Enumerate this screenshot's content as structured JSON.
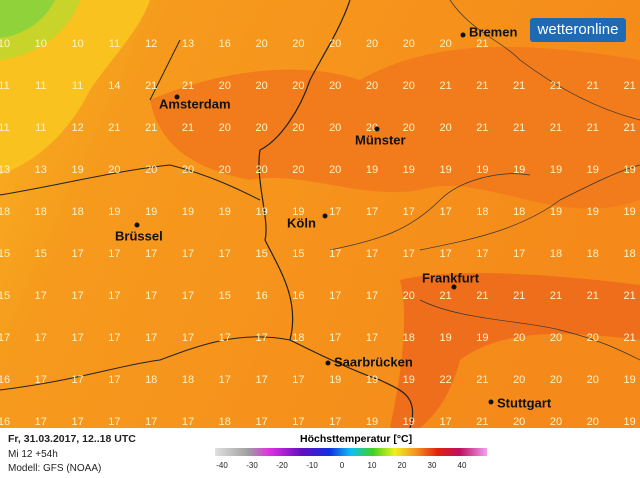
{
  "brand": "wetteronline",
  "grid": {
    "rows": [
      [
        10,
        10,
        10,
        11,
        12,
        13,
        16,
        20,
        20,
        20,
        20,
        20,
        20,
        21,
        null,
        null,
        null,
        null
      ],
      [
        11,
        11,
        11,
        14,
        21,
        21,
        20,
        20,
        20,
        20,
        20,
        20,
        21,
        21,
        21,
        21,
        21,
        21
      ],
      [
        11,
        11,
        12,
        21,
        21,
        21,
        20,
        20,
        20,
        20,
        20,
        20,
        20,
        21,
        21,
        21,
        21,
        21
      ],
      [
        13,
        13,
        19,
        20,
        20,
        20,
        20,
        20,
        20,
        20,
        19,
        19,
        19,
        19,
        19,
        19,
        19,
        19
      ],
      [
        18,
        18,
        18,
        19,
        19,
        19,
        19,
        19,
        19,
        17,
        17,
        17,
        17,
        18,
        18,
        19,
        19,
        19
      ],
      [
        15,
        15,
        17,
        17,
        17,
        17,
        17,
        15,
        15,
        17,
        17,
        17,
        17,
        17,
        17,
        18,
        18,
        18
      ],
      [
        15,
        17,
        17,
        17,
        17,
        17,
        15,
        16,
        16,
        17,
        17,
        20,
        21,
        21,
        21,
        21,
        21,
        21
      ],
      [
        17,
        17,
        17,
        17,
        17,
        17,
        17,
        17,
        18,
        17,
        17,
        18,
        19,
        19,
        20,
        20,
        20,
        21
      ],
      [
        16,
        17,
        17,
        17,
        18,
        18,
        17,
        17,
        17,
        19,
        19,
        19,
        22,
        21,
        20,
        20,
        20,
        19
      ],
      [
        16,
        17,
        17,
        17,
        17,
        17,
        18,
        17,
        17,
        17,
        19,
        19,
        17,
        21,
        20,
        20,
        20,
        19
      ]
    ]
  },
  "cities": [
    {
      "name": "Bremen"
    },
    {
      "name": "Amsterdam"
    },
    {
      "name": "Münster"
    },
    {
      "name": "Brüssel"
    },
    {
      "name": "Köln"
    },
    {
      "name": "Frankfurt"
    },
    {
      "name": "Saarbrücken"
    },
    {
      "name": "Stuttgart"
    }
  ],
  "footer": {
    "date": "Fr, 31.03.2017, 12..18 UTC",
    "run": "Mi 12 +54h",
    "model": "Modell: GFS (NOAA)"
  },
  "legend": {
    "title": "Höchsttemperatur [°C]",
    "ticks": [
      -40,
      -30,
      -20,
      -10,
      0,
      10,
      20,
      30,
      40
    ]
  }
}
